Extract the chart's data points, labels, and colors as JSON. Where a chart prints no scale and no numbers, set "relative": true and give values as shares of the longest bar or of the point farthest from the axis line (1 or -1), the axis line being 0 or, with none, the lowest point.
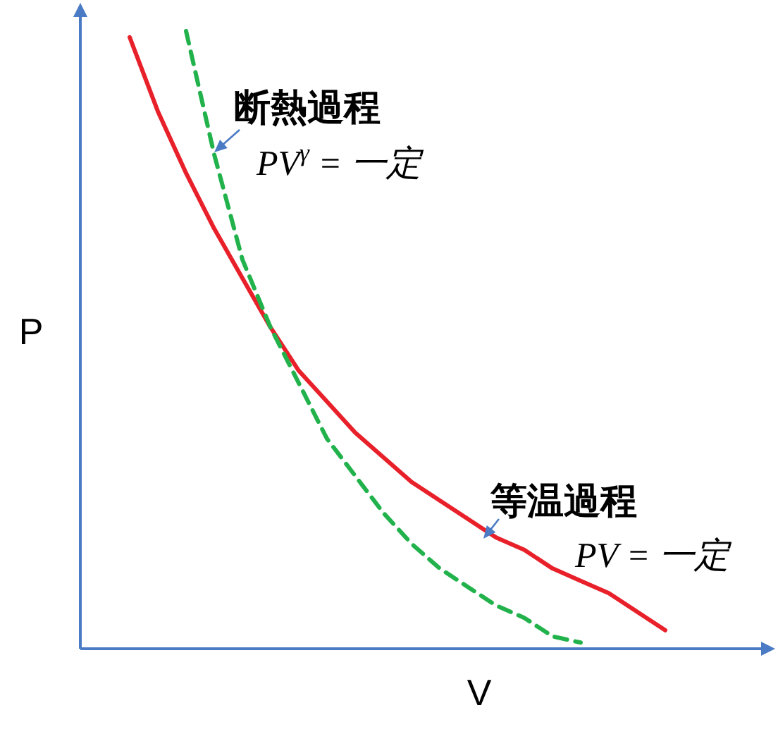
{
  "chart_data": {
    "type": "line",
    "relative": true,
    "xlabel": "V",
    "ylabel": "P",
    "categories": [
      null,
      null,
      null,
      null,
      null,
      null,
      null,
      null,
      null,
      null,
      null,
      null,
      null,
      null,
      null,
      null,
      null,
      null,
      null,
      null
    ],
    "series": [
      {
        "color": "#e8202a",
        "line_style": "solid",
        "values": [
          0.99,
          0.87,
          0.77,
          0.68,
          0.6,
          0.52,
          0.45,
          0.4,
          0.35,
          0.31,
          0.27,
          0.24,
          0.21,
          0.18,
          0.16,
          0.13,
          0.11,
          0.09,
          0.06,
          0.03
        ]
      },
      {
        "color": "#22b24c",
        "line_style": "dashed",
        "values": [
          null,
          null,
          1,
          0.8,
          0.63,
          0.52,
          0.43,
          0.34,
          0.28,
          0.22,
          0.17,
          0.13,
          0.1,
          0.07,
          0.05,
          0.02,
          0.01,
          null,
          null,
          null
        ]
      }
    ],
    "annotations": [
      "断熱過程",
      "PV$^{γ}$ = 一定",
      "等温過程",
      "PV = 一定"
    ]
  }
}
